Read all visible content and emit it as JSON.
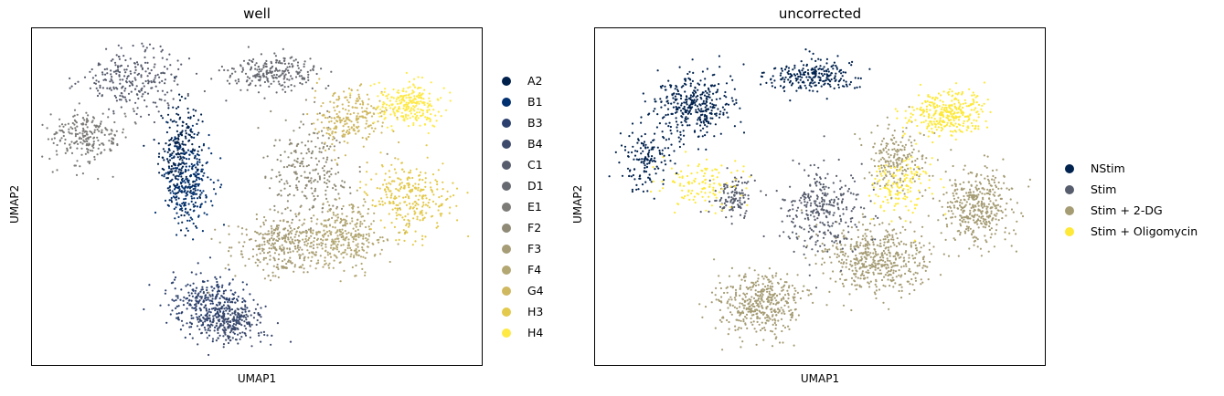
{
  "chart_data": [
    {
      "type": "scatter",
      "title": "well",
      "xlabel": "UMAP1",
      "ylabel": "UMAP2",
      "grid": false,
      "legend_position": "right",
      "series": [
        {
          "name": "A2",
          "color": "#00204c"
        },
        {
          "name": "B1",
          "color": "#00306f"
        },
        {
          "name": "B3",
          "color": "#2a3f6d"
        },
        {
          "name": "B4",
          "color": "#3d4a6c"
        },
        {
          "name": "C1",
          "color": "#575c6d"
        },
        {
          "name": "D1",
          "color": "#666970"
        },
        {
          "name": "E1",
          "color": "#7c7b78"
        },
        {
          "name": "F2",
          "color": "#8f8a76"
        },
        {
          "name": "F3",
          "color": "#a69c75"
        },
        {
          "name": "F4",
          "color": "#b3a772"
        },
        {
          "name": "G4",
          "color": "#cfb860"
        },
        {
          "name": "H3",
          "color": "#e3c94c"
        },
        {
          "name": "H4",
          "color": "#ffe945"
        }
      ],
      "clusters": [
        {
          "series": "A2",
          "cx": 3.2,
          "cy": 6.3,
          "sx": 0.45,
          "sy": 1.5,
          "n": 260
        },
        {
          "series": "B1",
          "cx": 3.4,
          "cy": 5.4,
          "sx": 0.5,
          "sy": 1.3,
          "n": 240
        },
        {
          "series": "B3",
          "cx": 3.9,
          "cy": 1.6,
          "sx": 0.9,
          "sy": 0.85,
          "n": 320
        },
        {
          "series": "B4",
          "cx": 4.4,
          "cy": 1.0,
          "sx": 0.75,
          "sy": 0.6,
          "n": 230
        },
        {
          "series": "C1",
          "cx": 2.1,
          "cy": 8.7,
          "sx": 1.1,
          "sy": 0.9,
          "n": 250
        },
        {
          "series": "D1",
          "cx": 5.4,
          "cy": 8.9,
          "sx": 1.0,
          "sy": 0.45,
          "n": 230
        },
        {
          "series": "E1",
          "cx": 1.0,
          "cy": 6.9,
          "sx": 0.8,
          "sy": 0.8,
          "n": 230
        },
        {
          "series": "F2",
          "cx": 6.2,
          "cy": 5.8,
          "sx": 0.9,
          "sy": 1.4,
          "n": 240
        },
        {
          "series": "F3",
          "cx": 5.6,
          "cy": 3.5,
          "sx": 1.0,
          "sy": 0.9,
          "n": 320
        },
        {
          "series": "F4",
          "cx": 7.0,
          "cy": 3.7,
          "sx": 1.0,
          "sy": 0.95,
          "n": 320
        },
        {
          "series": "G4",
          "cx": 7.2,
          "cy": 7.5,
          "sx": 0.8,
          "sy": 0.75,
          "n": 230
        },
        {
          "series": "H3",
          "cx": 8.6,
          "cy": 5.0,
          "sx": 0.9,
          "sy": 1.0,
          "n": 280
        },
        {
          "series": "H4",
          "cx": 8.6,
          "cy": 7.9,
          "sx": 0.75,
          "sy": 0.6,
          "n": 260
        }
      ]
    },
    {
      "type": "scatter",
      "title": "uncorrected",
      "xlabel": "UMAP1",
      "ylabel": "UMAP2",
      "grid": false,
      "legend_position": "right",
      "series": [
        {
          "name": "NStim",
          "color": "#00224e"
        },
        {
          "name": "Stim",
          "color": "#575d6d"
        },
        {
          "name": "Stim + 2-DG",
          "color": "#a59c74"
        },
        {
          "name": "Stim + Oligomycin",
          "color": "#fee838"
        }
      ],
      "clusters": [
        {
          "series": "Stim + 2-DG",
          "cx": 3.6,
          "cy": 1.6,
          "sx": 0.9,
          "sy": 0.9,
          "n": 420
        },
        {
          "series": "Stim + 2-DG",
          "cx": 6.3,
          "cy": 3.0,
          "sx": 1.2,
          "sy": 1.0,
          "n": 480
        },
        {
          "series": "Stim + 2-DG",
          "cx": 8.7,
          "cy": 4.7,
          "sx": 0.8,
          "sy": 1.1,
          "n": 380
        },
        {
          "series": "Stim + 2-DG",
          "cx": 6.8,
          "cy": 6.2,
          "sx": 0.7,
          "sy": 0.9,
          "n": 200
        },
        {
          "series": "Stim",
          "cx": 5.1,
          "cy": 4.6,
          "sx": 0.8,
          "sy": 1.3,
          "n": 300
        },
        {
          "series": "Stim",
          "cx": 3.0,
          "cy": 5.0,
          "sx": 0.5,
          "sy": 0.6,
          "n": 120
        },
        {
          "series": "Stim + Oligomycin",
          "cx": 8.0,
          "cy": 7.6,
          "sx": 0.85,
          "sy": 0.65,
          "n": 330
        },
        {
          "series": "Stim + Oligomycin",
          "cx": 6.9,
          "cy": 5.4,
          "sx": 0.6,
          "sy": 0.9,
          "n": 140
        },
        {
          "series": "Stim + Oligomycin",
          "cx": 2.2,
          "cy": 5.4,
          "sx": 0.8,
          "sy": 0.7,
          "n": 120
        },
        {
          "series": "NStim",
          "cx": 2.0,
          "cy": 7.9,
          "sx": 0.9,
          "sy": 0.9,
          "n": 360
        },
        {
          "series": "NStim",
          "cx": 0.9,
          "cy": 6.1,
          "sx": 0.5,
          "sy": 0.8,
          "n": 140
        },
        {
          "series": "NStim",
          "cx": 4.8,
          "cy": 8.8,
          "sx": 0.9,
          "sy": 0.45,
          "n": 240
        }
      ]
    }
  ]
}
